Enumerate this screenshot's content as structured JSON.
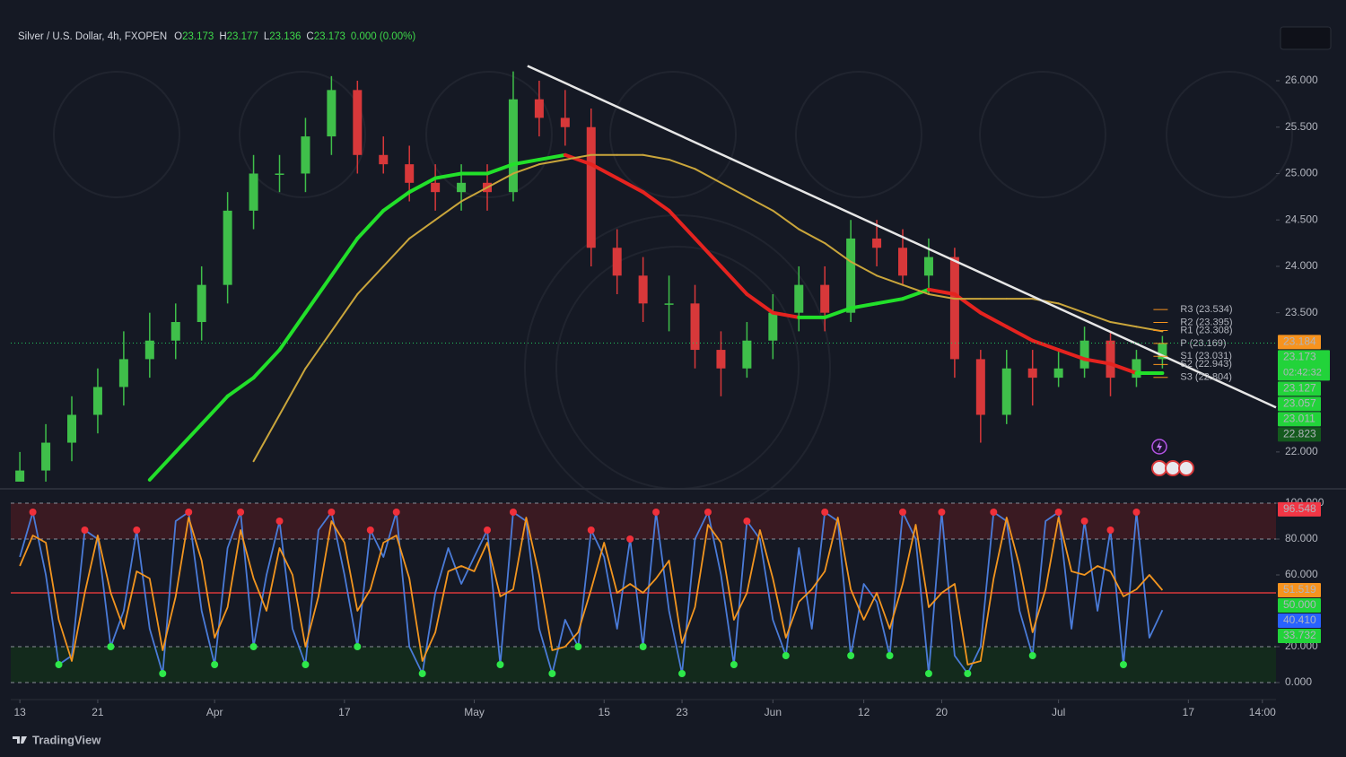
{
  "header": {
    "symbol": "Silver / U.S. Dollar, 4h, FXOPEN",
    "ohlc": [
      {
        "key": "O",
        "value": "23.173"
      },
      {
        "key": "H",
        "value": "23.177"
      },
      {
        "key": "L",
        "value": "23.136"
      },
      {
        "key": "C",
        "value": "23.173"
      }
    ],
    "change": "0.000 (0.00%)"
  },
  "footer": {
    "brand": "TradingView"
  },
  "chart_data": [
    {
      "type": "candlestick",
      "x": [
        0,
        2,
        4,
        6,
        8,
        10,
        12,
        14,
        16,
        18,
        20,
        22,
        24,
        26,
        28,
        30,
        32,
        34,
        36,
        38,
        40,
        42,
        44,
        46,
        48,
        50,
        52,
        54,
        56,
        58,
        60,
        62,
        64,
        66,
        68,
        70,
        72,
        74,
        76,
        78,
        80,
        82,
        84,
        86,
        88
      ],
      "open": [
        21.6,
        21.8,
        22.1,
        22.4,
        22.7,
        23.0,
        23.2,
        23.4,
        23.8,
        24.6,
        25.0,
        25.0,
        25.4,
        25.9,
        25.2,
        25.1,
        24.9,
        24.8,
        24.9,
        24.8,
        25.8,
        25.6,
        25.5,
        24.2,
        23.9,
        23.6,
        23.6,
        23.1,
        22.9,
        23.2,
        23.5,
        23.8,
        23.5,
        24.3,
        24.2,
        23.9,
        24.1,
        23.0,
        22.4,
        22.9,
        22.8,
        22.9,
        23.2,
        22.8,
        23.0
      ],
      "high": [
        22.0,
        22.3,
        22.6,
        22.9,
        23.3,
        23.5,
        23.6,
        24.0,
        24.8,
        25.2,
        25.2,
        25.6,
        26.05,
        26.0,
        25.4,
        25.3,
        25.1,
        25.1,
        25.1,
        26.1,
        26.0,
        25.9,
        25.7,
        24.4,
        24.1,
        23.9,
        23.8,
        23.3,
        23.4,
        23.7,
        24.0,
        24.0,
        24.5,
        24.5,
        24.4,
        24.3,
        24.2,
        23.1,
        23.1,
        23.1,
        23.1,
        23.35,
        23.3,
        23.1,
        23.25
      ],
      "low": [
        21.4,
        21.6,
        21.9,
        22.2,
        22.5,
        22.8,
        23.0,
        23.2,
        23.6,
        24.4,
        24.8,
        24.8,
        25.2,
        25.0,
        25.0,
        24.7,
        24.6,
        24.6,
        24.6,
        24.7,
        25.4,
        25.3,
        24.0,
        23.7,
        23.4,
        23.3,
        22.9,
        22.6,
        22.8,
        23.0,
        23.3,
        23.3,
        23.4,
        24.0,
        23.8,
        23.7,
        22.8,
        22.1,
        22.3,
        22.5,
        22.7,
        22.8,
        22.6,
        22.7,
        22.9
      ],
      "close": [
        21.8,
        22.1,
        22.4,
        22.7,
        23.0,
        23.2,
        23.4,
        23.8,
        24.6,
        25.0,
        25.0,
        25.4,
        25.9,
        25.2,
        25.1,
        24.9,
        24.8,
        24.9,
        24.8,
        25.8,
        25.6,
        25.5,
        24.2,
        23.9,
        23.6,
        23.6,
        23.1,
        22.9,
        23.2,
        23.5,
        23.8,
        23.5,
        24.3,
        24.2,
        23.9,
        24.1,
        23.0,
        22.4,
        22.9,
        22.8,
        22.9,
        23.2,
        22.8,
        23.0,
        23.173
      ],
      "up_color": "#3fbf4a",
      "down_color": "#d8383a",
      "series": [
        {
          "color_up": "#22e02a",
          "color_down": "#e5231f",
          "values": [
            null,
            null,
            null,
            null,
            null,
            21.7,
            22.0,
            22.3,
            22.6,
            22.8,
            23.1,
            23.5,
            23.9,
            24.3,
            24.6,
            24.8,
            24.95,
            25.0,
            25.0,
            25.1,
            25.15,
            25.2,
            25.1,
            24.95,
            24.8,
            24.6,
            24.3,
            24.0,
            23.7,
            23.5,
            23.45,
            23.45,
            23.55,
            23.6,
            23.65,
            23.75,
            23.7,
            23.5,
            23.35,
            23.2,
            23.1,
            23.0,
            22.95,
            22.85,
            22.85
          ]
        },
        {
          "color": "#c9a53b",
          "values": [
            null,
            null,
            null,
            null,
            null,
            null,
            null,
            null,
            null,
            21.9,
            22.4,
            22.9,
            23.3,
            23.7,
            24.0,
            24.3,
            24.5,
            24.7,
            24.85,
            25.0,
            25.1,
            25.15,
            25.2,
            25.2,
            25.2,
            25.15,
            25.05,
            24.9,
            24.75,
            24.6,
            24.4,
            24.25,
            24.05,
            23.9,
            23.8,
            23.7,
            23.65,
            23.65,
            23.65,
            23.65,
            23.6,
            23.5,
            23.4,
            23.35,
            23.3
          ]
        }
      ],
      "trendline": {
        "x": [
          39.1,
          96.75
        ],
        "values": [
          26.16,
          22.48
        ],
        "color": "#e6e6e6"
      },
      "last_price": 23.173,
      "last_price_color": "#22c55e",
      "pivot_color": "#f7931e",
      "pivots": [
        {
          "label": "R3 (23.534)",
          "value": 23.534
        },
        {
          "label": "R2 (23.395)",
          "value": 23.395
        },
        {
          "label": "R1 (23.308)",
          "value": 23.308
        },
        {
          "label": "P (23.169)",
          "value": 23.169
        },
        {
          "label": "S1 (23.031)",
          "value": 23.031
        },
        {
          "label": "S2 (22.943)",
          "value": 22.943
        },
        {
          "label": "S3 (22.804)",
          "value": 22.804
        }
      ],
      "tags": [
        {
          "value": 23.184,
          "color": "#f7931e"
        },
        {
          "value": 23.173,
          "color": "#22d33a",
          "countdown": "02:42:32"
        },
        {
          "value": 23.127,
          "color": "#22d33a"
        },
        {
          "value": 23.057,
          "color": "#22d33a"
        },
        {
          "value": 23.011,
          "color": "#22d33a"
        },
        {
          "value": 22.823,
          "color": "#145a1e"
        }
      ],
      "xlim": [
        -0.7,
        96.75
      ],
      "ylim": [
        21.68,
        26.58
      ],
      "yticks": [
        {
          "value": 22,
          "label": "22.000"
        },
        {
          "value": 23.5,
          "label": "23.500"
        },
        {
          "value": 24,
          "label": "24.000"
        },
        {
          "value": 24.5,
          "label": "24.500"
        },
        {
          "value": 25,
          "label": "25.000"
        },
        {
          "value": 25.5,
          "label": "25.500"
        },
        {
          "value": 26,
          "label": "26.000"
        }
      ]
    },
    {
      "type": "line",
      "x": [
        0,
        1,
        2,
        3,
        4,
        5,
        6,
        7,
        8,
        9,
        10,
        11,
        12,
        13,
        14,
        15,
        16,
        17,
        18,
        19,
        20,
        21,
        22,
        23,
        24,
        25,
        26,
        27,
        28,
        29,
        30,
        31,
        32,
        33,
        34,
        35,
        36,
        37,
        38,
        39,
        40,
        41,
        42,
        43,
        44,
        45,
        46,
        47,
        48,
        49,
        50,
        51,
        52,
        53,
        54,
        55,
        56,
        57,
        58,
        59,
        60,
        61,
        62,
        63,
        64,
        65,
        66,
        67,
        68,
        69,
        70,
        71,
        72,
        73,
        74,
        75,
        76,
        77,
        78,
        79,
        80,
        81,
        82,
        83,
        84,
        85,
        86,
        87,
        88
      ],
      "series": [
        {
          "color": "#4a7bd8",
          "values": [
            70,
            95,
            60,
            10,
            15,
            85,
            80,
            20,
            40,
            85,
            30,
            5,
            90,
            95,
            40,
            10,
            75,
            95,
            20,
            60,
            90,
            30,
            10,
            85,
            95,
            60,
            20,
            85,
            70,
            95,
            20,
            5,
            50,
            75,
            55,
            70,
            85,
            10,
            95,
            90,
            30,
            5,
            35,
            20,
            85,
            70,
            30,
            80,
            20,
            95,
            40,
            5,
            80,
            95,
            60,
            10,
            90,
            80,
            35,
            15,
            75,
            30,
            95,
            90,
            15,
            55,
            45,
            15,
            95,
            80,
            5,
            95,
            15,
            5,
            20,
            95,
            90,
            40,
            15,
            90,
            95,
            30,
            90,
            40,
            85,
            10,
            95,
            25,
            40.41
          ]
        },
        {
          "color": "#f2951f",
          "values": [
            65,
            82,
            78,
            35,
            12,
            50,
            82,
            50,
            30,
            62,
            58,
            18,
            48,
            92,
            68,
            25,
            42,
            85,
            58,
            40,
            75,
            60,
            20,
            48,
            90,
            78,
            40,
            52,
            78,
            82,
            58,
            12,
            28,
            62,
            65,
            62,
            78,
            48,
            52,
            92,
            60,
            18,
            20,
            28,
            52,
            78,
            50,
            55,
            50,
            58,
            68,
            22,
            42,
            88,
            78,
            35,
            50,
            85,
            58,
            25,
            45,
            52,
            62,
            92,
            52,
            35,
            50,
            30,
            55,
            88,
            42,
            50,
            55,
            10,
            12,
            58,
            92,
            65,
            28,
            52,
            92,
            62,
            60,
            65,
            62,
            48,
            52,
            60,
            51.519
          ]
        }
      ],
      "marker_levels": [
        20,
        80
      ],
      "marker_low_color": "#2ee84a",
      "marker_high_color": "#f0303a",
      "bands": [
        {
          "from": 80,
          "to": 100,
          "color": "#3a1a22"
        },
        {
          "from": 0,
          "to": 20,
          "color": "#132a1c"
        }
      ],
      "hlines": [
        0,
        20,
        80,
        100
      ],
      "hline_color": "#8a8e99",
      "midline": 50,
      "midline_color": "#d8383a",
      "tags": [
        {
          "value": 96.548,
          "color": "#f23645"
        },
        {
          "value": 51.519,
          "color": "#f7931e"
        },
        {
          "value": 50,
          "label": "50.000",
          "color": "#22d33a"
        },
        {
          "value": 40.41,
          "label": "40.410",
          "color": "#2962ff"
        },
        {
          "value": 33.732,
          "color": "#22d33a"
        }
      ],
      "xlim": [
        -0.7,
        96.75
      ],
      "ylim": [
        -3.5,
        104
      ],
      "yticks": [
        {
          "value": 0,
          "label": "0.000"
        },
        {
          "value": 20,
          "label": "20.000"
        },
        {
          "value": 60,
          "label": "60.000"
        },
        {
          "value": 80,
          "label": "80.000"
        },
        {
          "value": 100,
          "label": "100.000"
        }
      ],
      "xticks": [
        {
          "value": 0,
          "label": "13"
        },
        {
          "value": 6,
          "label": "21"
        },
        {
          "value": 15,
          "label": "Apr"
        },
        {
          "value": 25,
          "label": "17"
        },
        {
          "value": 35,
          "label": "May"
        },
        {
          "value": 45,
          "label": "15"
        },
        {
          "value": 51,
          "label": "23"
        },
        {
          "value": 58,
          "label": "Jun"
        },
        {
          "value": 65,
          "label": "12"
        },
        {
          "value": 71,
          "label": "20"
        },
        {
          "value": 80,
          "label": "Jul"
        },
        {
          "value": 90,
          "label": "17"
        },
        {
          "value": 95.7,
          "label": "14:00"
        }
      ]
    }
  ]
}
